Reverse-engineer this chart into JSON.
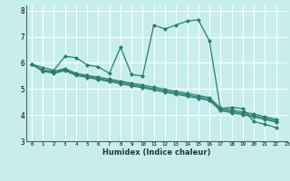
{
  "xlabel": "Humidex (Indice chaleur)",
  "xlim": [
    -0.5,
    23
  ],
  "ylim": [
    3,
    8.2
  ],
  "yticks": [
    3,
    4,
    5,
    6,
    7,
    8
  ],
  "xticks": [
    0,
    1,
    2,
    3,
    4,
    5,
    6,
    7,
    8,
    9,
    10,
    11,
    12,
    13,
    14,
    15,
    16,
    17,
    18,
    19,
    20,
    21,
    22,
    23
  ],
  "bg_color": "#c8eded",
  "grid_color": "#ffffff",
  "line_color": "#2a7d70",
  "line_width": 0.9,
  "marker": "D",
  "marker_size": 2.2,
  "series": [
    [
      5.95,
      5.82,
      5.72,
      6.25,
      6.2,
      5.92,
      5.85,
      5.6,
      6.6,
      5.55,
      5.5,
      7.45,
      7.3,
      7.45,
      7.6,
      7.65,
      6.85,
      4.25,
      4.3,
      4.25,
      3.75,
      3.65,
      3.52
    ],
    [
      5.95,
      5.72,
      5.68,
      5.78,
      5.6,
      5.52,
      5.45,
      5.38,
      5.3,
      5.22,
      5.15,
      5.07,
      4.99,
      4.91,
      4.83,
      4.75,
      4.67,
      4.28,
      4.2,
      4.12,
      4.04,
      3.94,
      3.84
    ],
    [
      5.95,
      5.7,
      5.64,
      5.74,
      5.56,
      5.48,
      5.4,
      5.33,
      5.25,
      5.17,
      5.09,
      5.01,
      4.93,
      4.85,
      4.77,
      4.69,
      4.61,
      4.22,
      4.14,
      4.06,
      3.98,
      3.88,
      3.78
    ],
    [
      5.95,
      5.68,
      5.6,
      5.7,
      5.52,
      5.44,
      5.36,
      5.28,
      5.2,
      5.12,
      5.04,
      4.96,
      4.88,
      4.8,
      4.72,
      4.64,
      4.56,
      4.17,
      4.09,
      4.01,
      3.93,
      3.83,
      3.73
    ]
  ]
}
